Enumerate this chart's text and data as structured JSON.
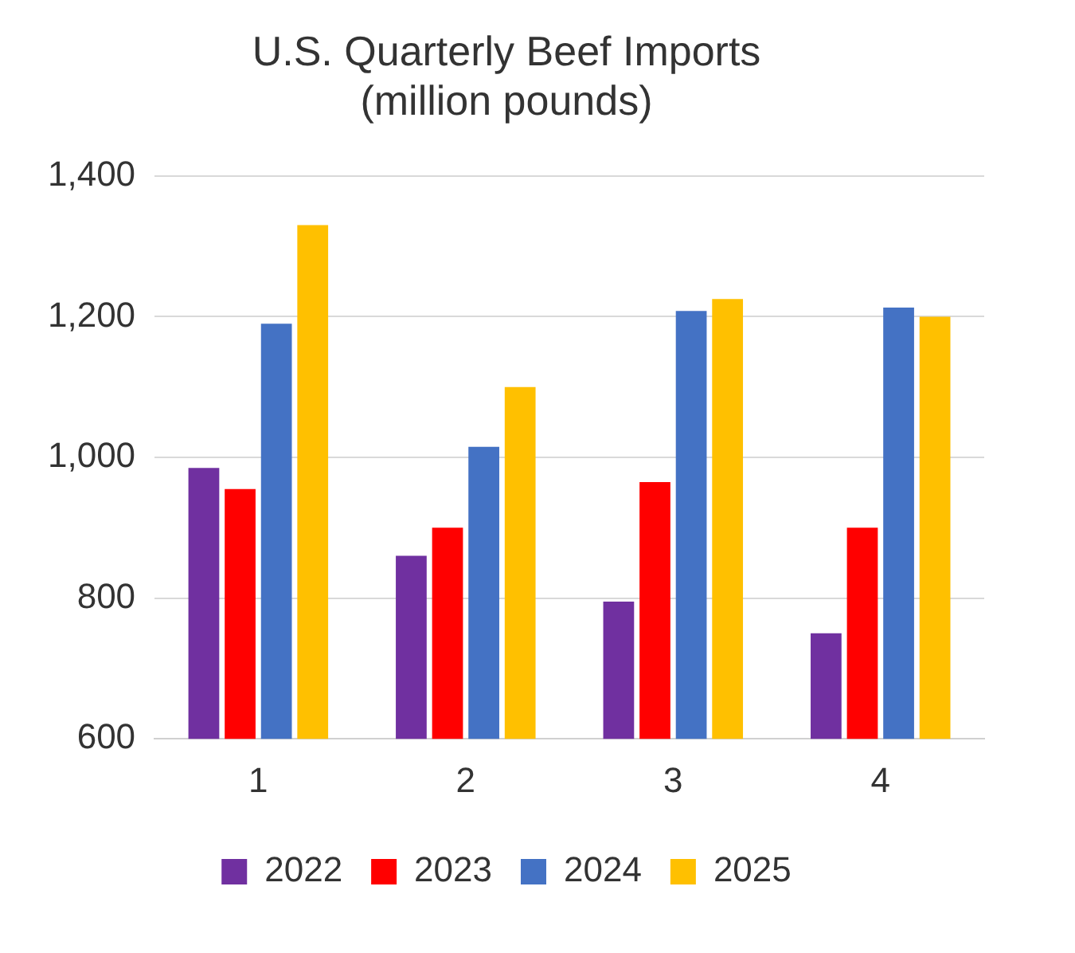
{
  "chart_data": {
    "type": "bar",
    "title": [
      "U.S. Quarterly Beef Imports",
      "(million pounds)"
    ],
    "categories": [
      "1",
      "2",
      "3",
      "4"
    ],
    "series": [
      {
        "name": "2022",
        "color": "#7030a0",
        "values": [
          985,
          860,
          795,
          750
        ]
      },
      {
        "name": "2023",
        "color": "#ff0000",
        "values": [
          955,
          900,
          965,
          900
        ]
      },
      {
        "name": "2024",
        "color": "#4472c4",
        "values": [
          1190,
          1015,
          1208,
          1213
        ]
      },
      {
        "name": "2025",
        "color": "#ffc000",
        "values": [
          1330,
          1100,
          1225,
          1200
        ]
      }
    ],
    "ylim": [
      600,
      1400
    ],
    "yticks": [
      600,
      800,
      {
        "value": 1000,
        "label": "1,000"
      },
      {
        "value": 1200,
        "label": "1,200"
      },
      {
        "value": 1400,
        "label": "1,400"
      }
    ],
    "grid": "y",
    "legend": "bottom"
  }
}
